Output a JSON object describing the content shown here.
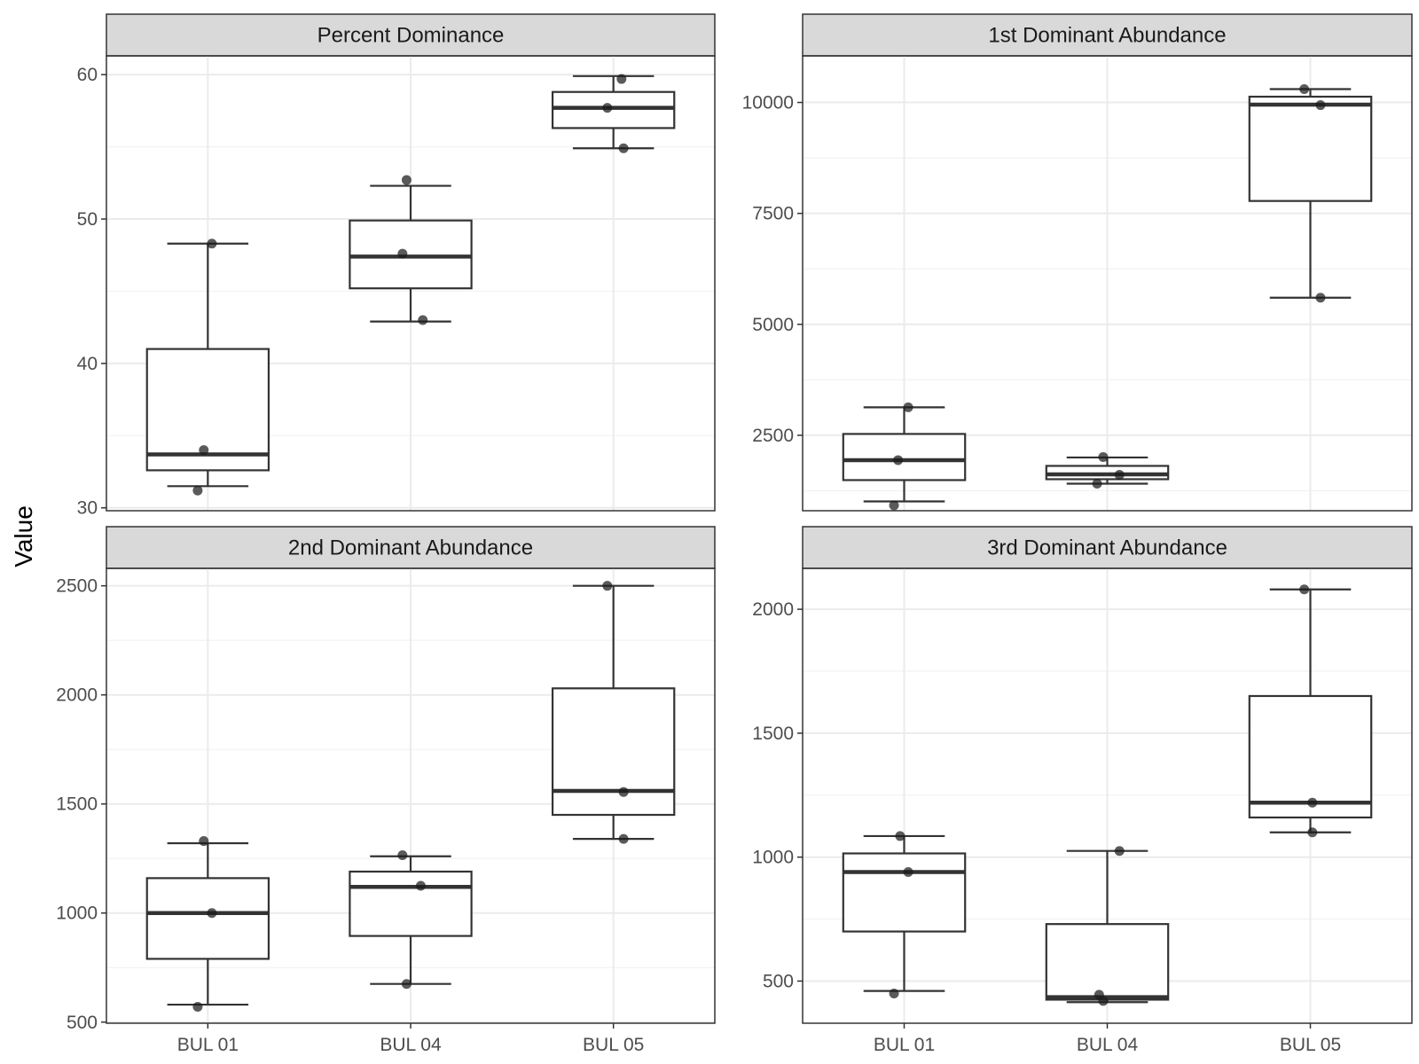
{
  "ylabel": "Value",
  "categories": [
    "BUL 01",
    "BUL 04",
    "BUL 05"
  ],
  "colors": {
    "strip_fill": "#d9d9d9",
    "box_line": "#333333",
    "point": "#1a1a1a",
    "grid": "#ebebeb"
  },
  "chart_data": [
    {
      "type": "box",
      "title": "Percent Dominance",
      "categories": [
        "BUL 01",
        "BUL 04",
        "BUL 05"
      ],
      "ylim": [
        29.8,
        61.3
      ],
      "yticks": [
        30,
        40,
        50,
        60
      ],
      "boxes": [
        {
          "category": "BUL 01",
          "whisker_low": 31.5,
          "q1": 32.6,
          "median": 33.7,
          "q3": 41.0,
          "whisker_high": 48.3
        },
        {
          "category": "BUL 04",
          "whisker_low": 42.9,
          "q1": 45.2,
          "median": 47.4,
          "q3": 49.9,
          "whisker_high": 52.3
        },
        {
          "category": "BUL 05",
          "whisker_low": 54.9,
          "q1": 56.3,
          "median": 57.7,
          "q3": 58.8,
          "whisker_high": 59.9
        }
      ],
      "points": [
        {
          "category": "BUL 01",
          "jitter": -0.05,
          "value": 31.2
        },
        {
          "category": "BUL 01",
          "jitter": -0.02,
          "value": 34.0
        },
        {
          "category": "BUL 01",
          "jitter": 0.02,
          "value": 48.3
        },
        {
          "category": "BUL 04",
          "jitter": 0.06,
          "value": 43.0
        },
        {
          "category": "BUL 04",
          "jitter": -0.04,
          "value": 47.6
        },
        {
          "category": "BUL 04",
          "jitter": -0.02,
          "value": 52.7
        },
        {
          "category": "BUL 05",
          "jitter": 0.05,
          "value": 54.9
        },
        {
          "category": "BUL 05",
          "jitter": -0.03,
          "value": 57.7
        },
        {
          "category": "BUL 05",
          "jitter": 0.04,
          "value": 59.7
        }
      ]
    },
    {
      "type": "box",
      "title": "1st Dominant Abundance",
      "categories": [
        "BUL 01",
        "BUL 04",
        "BUL 05"
      ],
      "ylim": [
        800,
        11050
      ],
      "yticks": [
        2500,
        5000,
        7500,
        10000
      ],
      "boxes": [
        {
          "category": "BUL 01",
          "whisker_low": 1010,
          "q1": 1490,
          "median": 1940,
          "q3": 2530,
          "whisker_high": 3130
        },
        {
          "category": "BUL 04",
          "whisker_low": 1410,
          "q1": 1510,
          "median": 1620,
          "q3": 1810,
          "whisker_high": 2000
        },
        {
          "category": "BUL 05",
          "whisker_low": 5600,
          "q1": 7780,
          "median": 9950,
          "q3": 10130,
          "whisker_high": 10300
        }
      ],
      "points": [
        {
          "category": "BUL 01",
          "jitter": -0.05,
          "value": 920
        },
        {
          "category": "BUL 01",
          "jitter": -0.03,
          "value": 1940
        },
        {
          "category": "BUL 01",
          "jitter": 0.02,
          "value": 3130
        },
        {
          "category": "BUL 04",
          "jitter": -0.05,
          "value": 1410
        },
        {
          "category": "BUL 04",
          "jitter": 0.06,
          "value": 1610
        },
        {
          "category": "BUL 04",
          "jitter": -0.02,
          "value": 2010
        },
        {
          "category": "BUL 05",
          "jitter": 0.05,
          "value": 5600
        },
        {
          "category": "BUL 05",
          "jitter": 0.05,
          "value": 9940
        },
        {
          "category": "BUL 05",
          "jitter": -0.03,
          "value": 10300
        }
      ]
    },
    {
      "type": "box",
      "title": "2nd Dominant Abundance",
      "categories": [
        "BUL 01",
        "BUL 04",
        "BUL 05"
      ],
      "ylim": [
        495,
        2580
      ],
      "yticks": [
        500,
        1000,
        1500,
        2000,
        2500
      ],
      "boxes": [
        {
          "category": "BUL 01",
          "whisker_low": 580,
          "q1": 790,
          "median": 1000,
          "q3": 1160,
          "whisker_high": 1320
        },
        {
          "category": "BUL 04",
          "whisker_low": 675,
          "q1": 895,
          "median": 1120,
          "q3": 1190,
          "whisker_high": 1260
        },
        {
          "category": "BUL 05",
          "whisker_low": 1340,
          "q1": 1450,
          "median": 1560,
          "q3": 2030,
          "whisker_high": 2500
        }
      ],
      "points": [
        {
          "category": "BUL 01",
          "jitter": -0.05,
          "value": 570
        },
        {
          "category": "BUL 01",
          "jitter": 0.02,
          "value": 1000
        },
        {
          "category": "BUL 01",
          "jitter": -0.02,
          "value": 1330
        },
        {
          "category": "BUL 04",
          "jitter": -0.02,
          "value": 675
        },
        {
          "category": "BUL 04",
          "jitter": 0.05,
          "value": 1125
        },
        {
          "category": "BUL 04",
          "jitter": -0.04,
          "value": 1265
        },
        {
          "category": "BUL 05",
          "jitter": 0.05,
          "value": 1340
        },
        {
          "category": "BUL 05",
          "jitter": 0.05,
          "value": 1555
        },
        {
          "category": "BUL 05",
          "jitter": -0.03,
          "value": 2500
        }
      ]
    },
    {
      "type": "box",
      "title": "3rd Dominant Abundance",
      "categories": [
        "BUL 01",
        "BUL 04",
        "BUL 05"
      ],
      "ylim": [
        330,
        2165
      ],
      "yticks": [
        500,
        1000,
        1500,
        2000
      ],
      "boxes": [
        {
          "category": "BUL 01",
          "whisker_low": 460,
          "q1": 700,
          "median": 940,
          "q3": 1015,
          "whisker_high": 1085
        },
        {
          "category": "BUL 04",
          "whisker_low": 415,
          "q1": 425,
          "median": 435,
          "q3": 730,
          "whisker_high": 1025
        },
        {
          "category": "BUL 05",
          "whisker_low": 1100,
          "q1": 1160,
          "median": 1220,
          "q3": 1650,
          "whisker_high": 2080
        }
      ],
      "points": [
        {
          "category": "BUL 01",
          "jitter": -0.05,
          "value": 450
        },
        {
          "category": "BUL 01",
          "jitter": 0.02,
          "value": 940
        },
        {
          "category": "BUL 01",
          "jitter": -0.02,
          "value": 1085
        },
        {
          "category": "BUL 04",
          "jitter": -0.02,
          "value": 420
        },
        {
          "category": "BUL 04",
          "jitter": -0.04,
          "value": 445
        },
        {
          "category": "BUL 04",
          "jitter": 0.06,
          "value": 1025
        },
        {
          "category": "BUL 05",
          "jitter": 0.01,
          "value": 1100
        },
        {
          "category": "BUL 05",
          "jitter": 0.01,
          "value": 1220
        },
        {
          "category": "BUL 05",
          "jitter": -0.03,
          "value": 2080
        }
      ]
    }
  ]
}
